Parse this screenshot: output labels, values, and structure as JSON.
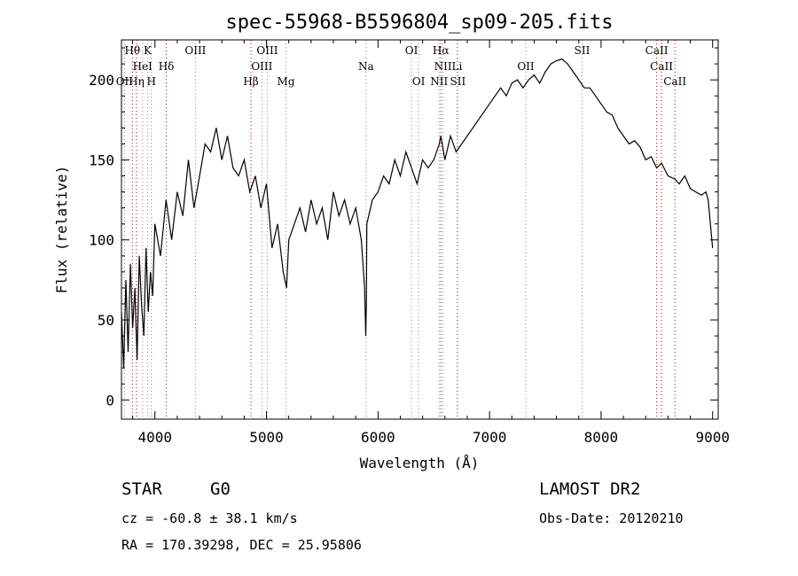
{
  "chart_data": {
    "type": "line",
    "title": "spec-55968-B5596804_sp09-205.fits",
    "xlabel": "Wavelength (Å)",
    "ylabel": "Flux (relative)",
    "xlim": [
      3700,
      9050
    ],
    "ylim": [
      -12,
      225
    ],
    "x_ticks": [
      4000,
      5000,
      6000,
      7000,
      8000,
      9000
    ],
    "y_ticks": [
      0,
      50,
      100,
      150,
      200
    ],
    "grid": false,
    "spectrum": {
      "x": [
        3700,
        3720,
        3740,
        3760,
        3780,
        3800,
        3820,
        3840,
        3860,
        3880,
        3900,
        3920,
        3940,
        3960,
        3980,
        4000,
        4050,
        4100,
        4150,
        4200,
        4250,
        4300,
        4350,
        4400,
        4450,
        4500,
        4550,
        4600,
        4650,
        4700,
        4750,
        4800,
        4850,
        4900,
        4950,
        5000,
        5050,
        5100,
        5150,
        5180,
        5200,
        5250,
        5300,
        5350,
        5400,
        5450,
        5500,
        5550,
        5600,
        5650,
        5700,
        5750,
        5800,
        5850,
        5880,
        5890,
        5896,
        5900,
        5950,
        6000,
        6050,
        6100,
        6150,
        6200,
        6250,
        6300,
        6350,
        6400,
        6450,
        6500,
        6550,
        6563,
        6600,
        6650,
        6700,
        6750,
        6800,
        6850,
        6900,
        6950,
        7000,
        7050,
        7100,
        7150,
        7200,
        7250,
        7300,
        7350,
        7400,
        7450,
        7500,
        7550,
        7600,
        7650,
        7700,
        7750,
        7800,
        7850,
        7900,
        7950,
        8000,
        8050,
        8100,
        8150,
        8200,
        8250,
        8300,
        8350,
        8400,
        8450,
        8498,
        8542,
        8600,
        8662,
        8700,
        8750,
        8800,
        8850,
        8900,
        8940,
        8960,
        8980,
        9000
      ],
      "y": [
        55,
        20,
        75,
        30,
        85,
        45,
        70,
        25,
        90,
        60,
        40,
        95,
        55,
        80,
        65,
        110,
        90,
        125,
        100,
        130,
        115,
        150,
        120,
        140,
        160,
        155,
        170,
        150,
        165,
        145,
        140,
        150,
        130,
        140,
        120,
        135,
        95,
        110,
        80,
        70,
        100,
        110,
        120,
        105,
        125,
        110,
        120,
        100,
        130,
        115,
        125,
        110,
        120,
        100,
        70,
        40,
        60,
        110,
        125,
        130,
        140,
        135,
        150,
        140,
        155,
        145,
        135,
        150,
        145,
        150,
        160,
        165,
        150,
        165,
        155,
        160,
        165,
        170,
        175,
        180,
        185,
        190,
        195,
        190,
        198,
        200,
        195,
        200,
        203,
        198,
        205,
        210,
        212,
        213,
        210,
        205,
        200,
        195,
        195,
        190,
        185,
        180,
        178,
        170,
        165,
        160,
        162,
        158,
        150,
        152,
        145,
        148,
        140,
        138,
        135,
        140,
        132,
        130,
        128,
        130,
        125,
        110,
        95
      ]
    },
    "spectral_lines": [
      {
        "name": "Hθ",
        "x": 3798,
        "row": 1,
        "color": "#c00000"
      },
      {
        "name": "K",
        "x": 3934,
        "row": 1,
        "color": "#888888"
      },
      {
        "name": "OIII",
        "x": 4363,
        "row": 1,
        "color": "#888888"
      },
      {
        "name": "OIII",
        "x": 5007,
        "row": 1,
        "color": "#888888"
      },
      {
        "name": "OI",
        "x": 6300,
        "row": 1,
        "color": "#888888"
      },
      {
        "name": "Hα",
        "x": 6563,
        "row": 1,
        "color": "#c00000"
      },
      {
        "name": "SII",
        "x": 7830,
        "row": 1,
        "color": "#888888"
      },
      {
        "name": "CaII",
        "x": 8498,
        "row": 1,
        "color": "#c00000"
      },
      {
        "name": "HeI",
        "x": 3889,
        "row": 2,
        "color": "#888888"
      },
      {
        "name": "Hδ",
        "x": 4102,
        "row": 2,
        "color": "#c00000"
      },
      {
        "name": "OIII",
        "x": 4959,
        "row": 2,
        "color": "#888888"
      },
      {
        "name": "Na",
        "x": 5893,
        "row": 2,
        "color": "#888888"
      },
      {
        "name": "NII",
        "x": 6583,
        "row": 2,
        "color": "#888888"
      },
      {
        "name": "Li",
        "x": 6708,
        "row": 2,
        "color": "#888888"
      },
      {
        "name": "OII",
        "x": 7325,
        "row": 2,
        "color": "#888888"
      },
      {
        "name": "CaII",
        "x": 8542,
        "row": 2,
        "color": "#c00000"
      },
      {
        "name": "OII",
        "x": 3727,
        "row": 3,
        "color": "#888888"
      },
      {
        "name": "Hη",
        "x": 3835,
        "row": 3,
        "color": "#c00000"
      },
      {
        "name": "H",
        "x": 3968,
        "row": 3,
        "color": "#888888"
      },
      {
        "name": "Hβ",
        "x": 4861,
        "row": 3,
        "color": "#c00000"
      },
      {
        "name": "Mg",
        "x": 5175,
        "row": 3,
        "color": "#888888"
      },
      {
        "name": "OI",
        "x": 6364,
        "row": 3,
        "color": "#888888"
      },
      {
        "name": "NII",
        "x": 6548,
        "row": 3,
        "color": "#888888"
      },
      {
        "name": "SII",
        "x": 6716,
        "row": 3,
        "color": "#888888"
      },
      {
        "name": "CaII",
        "x": 8662,
        "row": 3,
        "color": "#c00000"
      }
    ]
  },
  "info": {
    "object_class": "STAR",
    "subclass": "G0",
    "survey": "LAMOST DR2",
    "redshift": "cz = -60.8 ± 38.1 km/s",
    "obs_date": "Obs-Date: 20120210",
    "coords": "RA = 170.39298, DEC =  25.95806"
  },
  "colors": {
    "spectrum": "#000000",
    "balmer_marker": "#c00000",
    "other_marker": "#888888"
  }
}
